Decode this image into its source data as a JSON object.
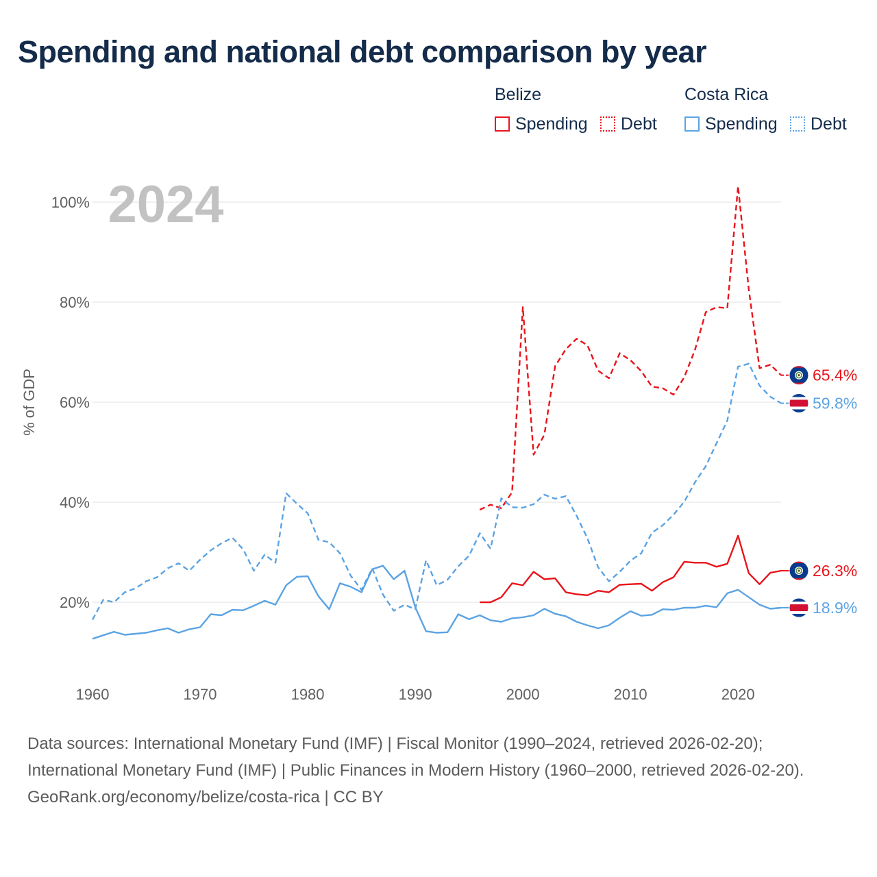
{
  "title": "Spending and national debt comparison by year",
  "year_watermark": "2024",
  "legend": {
    "groups": [
      {
        "name": "Belize",
        "color": "#e8141a",
        "items": [
          {
            "label": "Spending",
            "style": "solid"
          },
          {
            "label": "Debt",
            "style": "dotted"
          }
        ]
      },
      {
        "name": "Costa Rica",
        "color": "#5ba3e3",
        "items": [
          {
            "label": "Spending",
            "style": "solid"
          },
          {
            "label": "Debt",
            "style": "dotted"
          }
        ]
      }
    ]
  },
  "chart_data": {
    "type": "line",
    "title": "Spending and national debt comparison by year",
    "xlabel": "",
    "ylabel": "% of GDP",
    "xlim": [
      1960,
      2024
    ],
    "ylim": [
      4,
      104
    ],
    "x_ticks": [
      1960,
      1970,
      1980,
      1990,
      2000,
      2010,
      2020
    ],
    "y_ticks": [
      20,
      40,
      60,
      80,
      100
    ],
    "y_tick_labels": [
      "20%",
      "40%",
      "60%",
      "80%",
      "100%"
    ],
    "grid": true,
    "series": [
      {
        "name": "Belize Debt",
        "country": "Belize",
        "measure": "Debt",
        "color": "#e8141a",
        "dashed": true,
        "end_label": "65.4%",
        "points": [
          [
            1996,
            38.5
          ],
          [
            1997,
            39.5
          ],
          [
            1998,
            38.8
          ],
          [
            1999,
            42
          ],
          [
            2000,
            79
          ],
          [
            2001,
            49.5
          ],
          [
            2002,
            53.5
          ],
          [
            2003,
            67.2
          ],
          [
            2004,
            70.6
          ],
          [
            2005,
            72.7
          ],
          [
            2006,
            71.4
          ],
          [
            2007,
            66.3
          ],
          [
            2008,
            64.8
          ],
          [
            2009,
            69.8
          ],
          [
            2010,
            68.4
          ],
          [
            2011,
            66.2
          ],
          [
            2012,
            63.1
          ],
          [
            2013,
            62.8
          ],
          [
            2014,
            61.5
          ],
          [
            2015,
            65
          ],
          [
            2016,
            70.5
          ],
          [
            2017,
            78
          ],
          [
            2018,
            79
          ],
          [
            2019,
            78.8
          ],
          [
            2020,
            103.2
          ],
          [
            2021,
            82.5
          ],
          [
            2022,
            66.8
          ],
          [
            2023,
            67.5
          ],
          [
            2024,
            65.4
          ]
        ]
      },
      {
        "name": "Costa Rica Debt",
        "country": "Costa Rica",
        "measure": "Debt",
        "color": "#5ba3e3",
        "dashed": true,
        "end_label": "59.8%",
        "points": [
          [
            1960,
            16.5
          ],
          [
            1961,
            20.5
          ],
          [
            1962,
            20
          ],
          [
            1963,
            22
          ],
          [
            1964,
            22.8
          ],
          [
            1965,
            24.2
          ],
          [
            1966,
            25
          ],
          [
            1967,
            26.8
          ],
          [
            1968,
            27.8
          ],
          [
            1969,
            26.3
          ],
          [
            1970,
            28.5
          ],
          [
            1971,
            30.4
          ],
          [
            1972,
            31.8
          ],
          [
            1973,
            32.9
          ],
          [
            1974,
            30.6
          ],
          [
            1975,
            26.3
          ],
          [
            1976,
            29.5
          ],
          [
            1977,
            27.9
          ],
          [
            1978,
            41.8
          ],
          [
            1979,
            39.7
          ],
          [
            1980,
            37.8
          ],
          [
            1981,
            32.5
          ],
          [
            1982,
            32
          ],
          [
            1983,
            29.8
          ],
          [
            1984,
            25.3
          ],
          [
            1985,
            22.5
          ],
          [
            1986,
            26.8
          ],
          [
            1987,
            21.5
          ],
          [
            1988,
            18.3
          ],
          [
            1989,
            19.5
          ],
          [
            1990,
            18.6
          ],
          [
            1991,
            28.4
          ],
          [
            1992,
            23.4
          ],
          [
            1993,
            24.5
          ],
          [
            1994,
            27.2
          ],
          [
            1995,
            29.3
          ],
          [
            1996,
            33.8
          ],
          [
            1997,
            30.7
          ],
          [
            1998,
            40.8
          ],
          [
            1999,
            39
          ],
          [
            2000,
            38.9
          ],
          [
            2001,
            39.6
          ],
          [
            2002,
            41.5
          ],
          [
            2003,
            40.7
          ],
          [
            2004,
            41.2
          ],
          [
            2005,
            37.3
          ],
          [
            2006,
            32.8
          ],
          [
            2007,
            27
          ],
          [
            2008,
            24.2
          ],
          [
            2009,
            26.1
          ],
          [
            2010,
            28.3
          ],
          [
            2011,
            29.8
          ],
          [
            2012,
            33.9
          ],
          [
            2013,
            35.4
          ],
          [
            2014,
            37.5
          ],
          [
            2015,
            40.1
          ],
          [
            2016,
            44
          ],
          [
            2017,
            47.2
          ],
          [
            2018,
            51.8
          ],
          [
            2019,
            56.3
          ],
          [
            2020,
            67.1
          ],
          [
            2021,
            67.7
          ],
          [
            2022,
            63.3
          ],
          [
            2023,
            61.1
          ],
          [
            2024,
            59.8
          ]
        ]
      },
      {
        "name": "Belize Spending",
        "country": "Belize",
        "measure": "Spending",
        "color": "#e8141a",
        "dashed": false,
        "end_label": "26.3%",
        "points": [
          [
            1996,
            20
          ],
          [
            1997,
            20
          ],
          [
            1998,
            21
          ],
          [
            1999,
            23.8
          ],
          [
            2000,
            23.4
          ],
          [
            2001,
            26.1
          ],
          [
            2002,
            24.6
          ],
          [
            2003,
            24.8
          ],
          [
            2004,
            22
          ],
          [
            2005,
            21.6
          ],
          [
            2006,
            21.4
          ],
          [
            2007,
            22.3
          ],
          [
            2008,
            22
          ],
          [
            2009,
            23.5
          ],
          [
            2010,
            23.6
          ],
          [
            2011,
            23.7
          ],
          [
            2012,
            22.3
          ],
          [
            2013,
            24
          ],
          [
            2014,
            25
          ],
          [
            2015,
            28.1
          ],
          [
            2016,
            27.9
          ],
          [
            2017,
            27.9
          ],
          [
            2018,
            27.1
          ],
          [
            2019,
            27.7
          ],
          [
            2020,
            33.3
          ],
          [
            2021,
            25.8
          ],
          [
            2022,
            23.6
          ],
          [
            2023,
            25.9
          ],
          [
            2024,
            26.3
          ]
        ]
      },
      {
        "name": "Costa Rica Spending",
        "country": "Costa Rica",
        "measure": "Spending",
        "color": "#5ba3e3",
        "dashed": false,
        "end_label": "18.9%",
        "points": [
          [
            1960,
            12.7
          ],
          [
            1961,
            13.4
          ],
          [
            1962,
            14.1
          ],
          [
            1963,
            13.5
          ],
          [
            1964,
            13.7
          ],
          [
            1965,
            13.9
          ],
          [
            1966,
            14.4
          ],
          [
            1967,
            14.8
          ],
          [
            1968,
            13.9
          ],
          [
            1969,
            14.6
          ],
          [
            1970,
            15
          ],
          [
            1971,
            17.6
          ],
          [
            1972,
            17.4
          ],
          [
            1973,
            18.5
          ],
          [
            1974,
            18.4
          ],
          [
            1975,
            19.3
          ],
          [
            1976,
            20.3
          ],
          [
            1977,
            19.5
          ],
          [
            1978,
            23.4
          ],
          [
            1979,
            25.1
          ],
          [
            1980,
            25.2
          ],
          [
            1981,
            21.2
          ],
          [
            1982,
            18.6
          ],
          [
            1983,
            23.8
          ],
          [
            1984,
            23.1
          ],
          [
            1985,
            22
          ],
          [
            1986,
            26.6
          ],
          [
            1987,
            27.3
          ],
          [
            1988,
            24.6
          ],
          [
            1989,
            26.3
          ],
          [
            1990,
            19
          ],
          [
            1991,
            14.2
          ],
          [
            1992,
            13.9
          ],
          [
            1993,
            14
          ],
          [
            1994,
            17.6
          ],
          [
            1995,
            16.6
          ],
          [
            1996,
            17.4
          ],
          [
            1997,
            16.4
          ],
          [
            1998,
            16.1
          ],
          [
            1999,
            16.8
          ],
          [
            2000,
            17
          ],
          [
            2001,
            17.4
          ],
          [
            2002,
            18.7
          ],
          [
            2003,
            17.7
          ],
          [
            2004,
            17.2
          ],
          [
            2005,
            16.1
          ],
          [
            2006,
            15.4
          ],
          [
            2007,
            14.8
          ],
          [
            2008,
            15.4
          ],
          [
            2009,
            16.9
          ],
          [
            2010,
            18.2
          ],
          [
            2011,
            17.3
          ],
          [
            2012,
            17.5
          ],
          [
            2013,
            18.6
          ],
          [
            2014,
            18.5
          ],
          [
            2015,
            18.9
          ],
          [
            2016,
            18.9
          ],
          [
            2017,
            19.3
          ],
          [
            2018,
            19
          ],
          [
            2019,
            21.8
          ],
          [
            2020,
            22.5
          ],
          [
            2021,
            21
          ],
          [
            2022,
            19.5
          ],
          [
            2023,
            18.7
          ],
          [
            2024,
            18.9
          ]
        ]
      }
    ]
  },
  "footer": {
    "sources": "Data sources: International Monetary Fund (IMF) | Fiscal Monitor (1990–2024, retrieved 2026-02-20); International Monetary Fund (IMF) | Public Finances in Modern History (1960–2000, retrieved 2026-02-20).",
    "attribution": "GeoRank.org/economy/belize/costa-rica | CC BY"
  }
}
